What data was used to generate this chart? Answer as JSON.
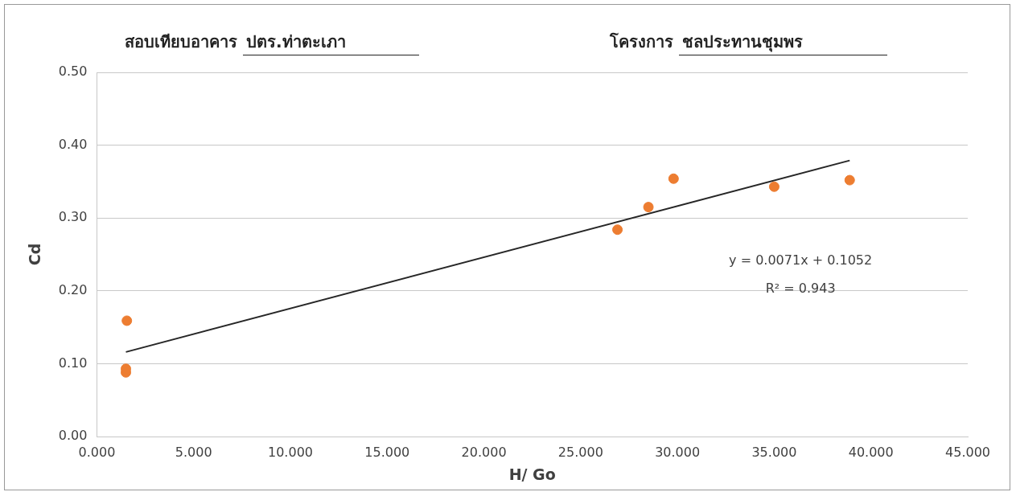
{
  "chart_data": {
    "type": "scatter",
    "title": "สอบเทียบอาคาร ปตร.ท่าตะเภา",
    "subtitle": "โครงการ ชลประทานชุมพร",
    "xlabel": "H/ Go",
    "ylabel": "Cd",
    "x": [
      1.5,
      1.5,
      1.55,
      26.9,
      28.5,
      29.8,
      35.0,
      38.9
    ],
    "series": [
      {
        "color": "#ed7d31",
        "values": [
          0.088,
          0.093,
          0.159,
          0.284,
          0.315,
          0.354,
          0.343,
          0.352
        ]
      },
      {
        "type": "line",
        "color": "#262626",
        "x": [
          1.5,
          38.9
        ],
        "values": [
          0.116,
          0.379
        ],
        "marker": "none"
      }
    ],
    "annotations": [
      "y = 0.0071x + 0.1052",
      "R² = 0.943"
    ],
    "xlim": [
      0,
      45
    ],
    "xticks": [
      {
        "value": 0,
        "label": "0.000"
      },
      {
        "value": 5,
        "label": "5.000"
      },
      {
        "value": 10,
        "label": "10.000"
      },
      {
        "value": 15,
        "label": "15.000"
      },
      {
        "value": 20,
        "label": "20.000"
      },
      {
        "value": 25,
        "label": "25.000"
      },
      {
        "value": 30,
        "label": "30.000"
      },
      {
        "value": 35,
        "label": "35.000"
      },
      {
        "value": 40,
        "label": "40.000"
      },
      {
        "value": 45,
        "label": "45.000"
      }
    ],
    "ylim": [
      0,
      0.5
    ],
    "yticks": [
      {
        "value": 0,
        "label": "0.00"
      },
      {
        "value": 0.1,
        "label": "0.10"
      },
      {
        "value": 0.2,
        "label": "0.20"
      },
      {
        "value": 0.3,
        "label": "0.30"
      },
      {
        "value": 0.4,
        "label": "0.40"
      },
      {
        "value": 0.5,
        "label": "0.50"
      }
    ],
    "grid": "y",
    "marker": "circle",
    "legend": false
  }
}
